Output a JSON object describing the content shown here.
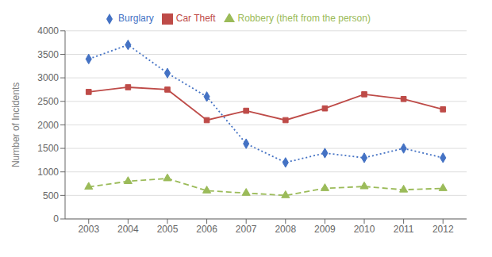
{
  "chart_data": {
    "type": "line",
    "x": [
      2003,
      2004,
      2005,
      2006,
      2007,
      2008,
      2009,
      2010,
      2011,
      2012
    ],
    "xlim": [
      2002.4,
      2012.6
    ],
    "xticks": [
      2003,
      2004,
      2005,
      2006,
      2007,
      2008,
      2009,
      2010,
      2011,
      2012
    ],
    "ylim": [
      0,
      4000
    ],
    "yticks": [
      0,
      500,
      1000,
      1500,
      2000,
      2500,
      3000,
      3500,
      4000
    ],
    "ylabel": "Number of Incidents",
    "grid": true,
    "legend": "top",
    "series": [
      {
        "name": "Burglary",
        "color": "#4472C4",
        "values": [
          3400,
          3700,
          3100,
          2600,
          1600,
          1200,
          1400,
          1300,
          1500,
          1300
        ],
        "marker": "diamond",
        "line_style": "dotted"
      },
      {
        "name": "Car Theft",
        "color": "#BE4B48",
        "values": [
          2700,
          2800,
          2750,
          2100,
          2300,
          2100,
          2350,
          2650,
          2550,
          2330
        ],
        "marker": "square",
        "line_style": "solid"
      },
      {
        "name": "Robbery (theft from the person)",
        "color": "#9BBB59",
        "values": [
          680,
          800,
          860,
          600,
          550,
          500,
          650,
          690,
          620,
          650
        ],
        "marker": "triangle",
        "line_style": "dashed"
      }
    ]
  }
}
